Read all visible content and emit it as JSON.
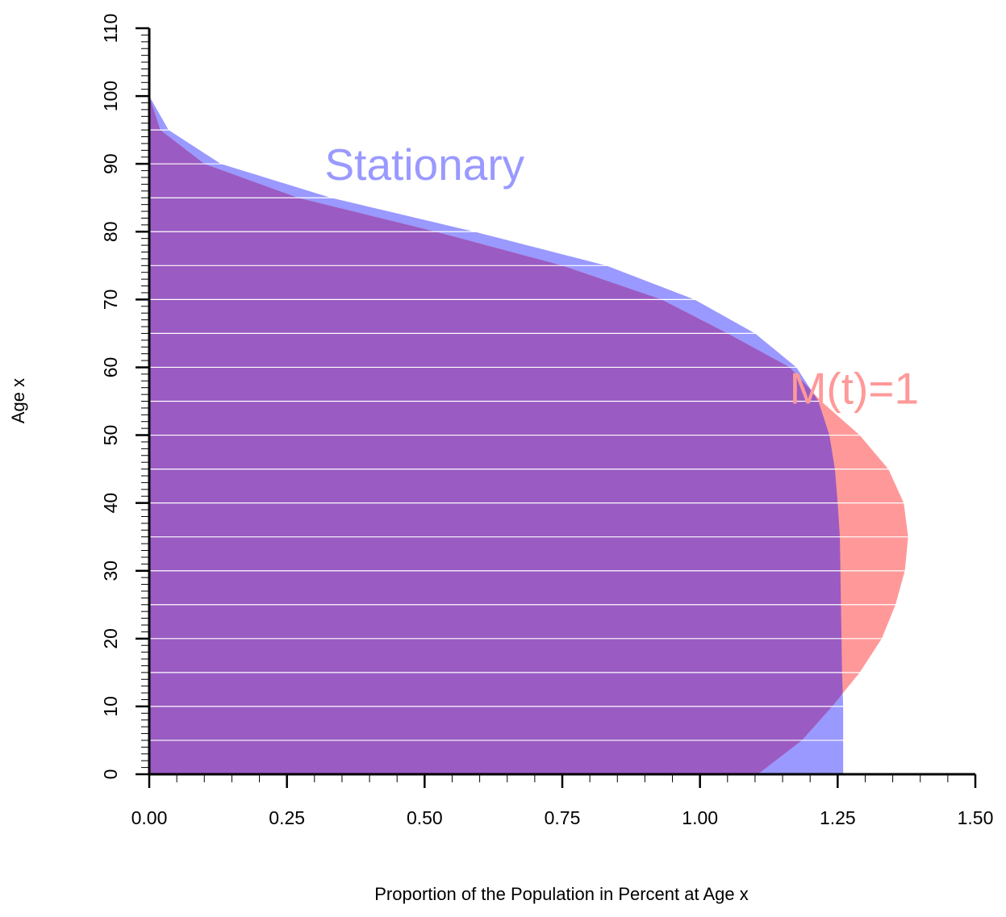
{
  "chart_data": {
    "type": "area",
    "title": "",
    "xlabel": "Proportion of the Population in Percent at Age x",
    "ylabel": "Age x",
    "xlim": [
      0,
      1.5
    ],
    "ylim": [
      0,
      110
    ],
    "x_ticks": [
      {
        "value": 0,
        "label": "0.00"
      },
      {
        "value": 0.25,
        "label": "0.25"
      },
      {
        "value": 0.5,
        "label": "0.50"
      },
      {
        "value": 0.75,
        "label": "0.75"
      },
      {
        "value": 1.0,
        "label": "1.00"
      },
      {
        "value": 1.25,
        "label": "1.25"
      },
      {
        "value": 1.5,
        "label": "1.50"
      }
    ],
    "x_minor_step": 0.05,
    "y_ticks": [
      {
        "value": 0,
        "label": "0"
      },
      {
        "value": 10,
        "label": "10"
      },
      {
        "value": 20,
        "label": "20"
      },
      {
        "value": 30,
        "label": "30"
      },
      {
        "value": 40,
        "label": "40"
      },
      {
        "value": 50,
        "label": "50"
      },
      {
        "value": 60,
        "label": "60"
      },
      {
        "value": 70,
        "label": "70"
      },
      {
        "value": 80,
        "label": "80"
      },
      {
        "value": 90,
        "label": "90"
      },
      {
        "value": 100,
        "label": "100"
      },
      {
        "value": 110,
        "label": "110"
      }
    ],
    "y_minor_step": 1,
    "grid": "horizontal lines every 5 years",
    "grid_step": 5,
    "series": [
      {
        "name": "Stationary",
        "color": "#9999ff",
        "points": [
          {
            "age": 0,
            "value": 1.26
          },
          {
            "age": 5,
            "value": 1.26
          },
          {
            "age": 10,
            "value": 1.26
          },
          {
            "age": 15,
            "value": 1.258
          },
          {
            "age": 20,
            "value": 1.257
          },
          {
            "age": 25,
            "value": 1.256
          },
          {
            "age": 30,
            "value": 1.255
          },
          {
            "age": 35,
            "value": 1.254
          },
          {
            "age": 40,
            "value": 1.25
          },
          {
            "age": 45,
            "value": 1.245
          },
          {
            "age": 50,
            "value": 1.235
          },
          {
            "age": 55,
            "value": 1.215
          },
          {
            "age": 60,
            "value": 1.175
          },
          {
            "age": 65,
            "value": 1.1
          },
          {
            "age": 70,
            "value": 0.99
          },
          {
            "age": 75,
            "value": 0.83
          },
          {
            "age": 80,
            "value": 0.59
          },
          {
            "age": 85,
            "value": 0.33
          },
          {
            "age": 90,
            "value": 0.13
          },
          {
            "age": 95,
            "value": 0.035
          },
          {
            "age": 100,
            "value": 0.0
          }
        ]
      },
      {
        "name": "M(t)=1",
        "color": "#ff9999",
        "points": [
          {
            "age": 0,
            "value": 1.105
          },
          {
            "age": 5,
            "value": 1.185
          },
          {
            "age": 10,
            "value": 1.24
          },
          {
            "age": 15,
            "value": 1.29
          },
          {
            "age": 20,
            "value": 1.33
          },
          {
            "age": 25,
            "value": 1.355
          },
          {
            "age": 30,
            "value": 1.372
          },
          {
            "age": 35,
            "value": 1.378
          },
          {
            "age": 40,
            "value": 1.37
          },
          {
            "age": 45,
            "value": 1.342
          },
          {
            "age": 50,
            "value": 1.29
          },
          {
            "age": 55,
            "value": 1.22
          },
          {
            "age": 60,
            "value": 1.163
          },
          {
            "age": 65,
            "value": 1.05
          },
          {
            "age": 70,
            "value": 0.93
          },
          {
            "age": 75,
            "value": 0.75
          },
          {
            "age": 80,
            "value": 0.52
          },
          {
            "age": 85,
            "value": 0.27
          },
          {
            "age": 90,
            "value": 0.1
          },
          {
            "age": 95,
            "value": 0.02
          },
          {
            "age": 100,
            "value": 0.0
          }
        ]
      }
    ],
    "overlap_color": "#9a5bc2",
    "annotations": [
      {
        "text": "Stationary",
        "color": "#9999ff",
        "x": 0.5,
        "y": 90
      },
      {
        "text": "M(t)=1",
        "color": "#ff9999",
        "x": 1.28,
        "y": 57
      }
    ]
  }
}
